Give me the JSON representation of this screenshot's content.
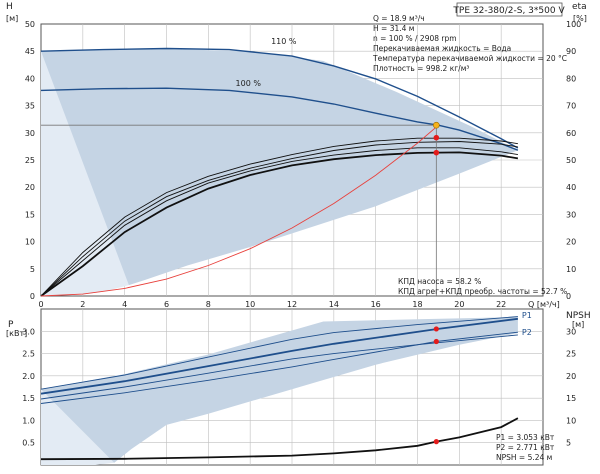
{
  "colors": {
    "band": "#c5d4e4",
    "band_light": "#e3ebf4",
    "curve": "#1f4f8c",
    "axis": "#555555",
    "grid": "#bfbfbf",
    "system": "#e8413c",
    "marker_op": "#f6b21b",
    "marker_pt": "#e31b1b",
    "text": "#222222"
  },
  "chart_data": [
    {
      "name": "head-curve",
      "type": "line",
      "title": "TPE 32-380/2-S, 3*500 V",
      "xlabel": "Q [м³/ч]",
      "ylabel": "H [м]",
      "y2label": "eta [%]",
      "xlim": [
        0,
        24
      ],
      "ylim": [
        0,
        50
      ],
      "y2lim": [
        0,
        100
      ],
      "xticks": [
        0,
        2,
        4,
        6,
        8,
        10,
        12,
        14,
        16,
        18,
        20,
        22
      ],
      "xtick_labels": [
        "0",
        "2",
        "4",
        "6",
        "8",
        "10",
        "12",
        "14",
        "16",
        "18",
        "20",
        "22"
      ],
      "yticks": [
        0,
        5,
        10,
        15,
        20,
        25,
        30,
        35,
        40,
        45,
        50
      ],
      "y2ticks": [
        0,
        10,
        20,
        30,
        40,
        50,
        60,
        70,
        80,
        90,
        100
      ],
      "envelope": {
        "upper": [
          [
            0,
            45
          ],
          [
            6,
            45.4
          ],
          [
            10,
            45
          ],
          [
            13.5,
            43.2
          ],
          [
            17,
            37.5
          ],
          [
            20.5,
            31.3
          ],
          [
            22.8,
            26.8
          ]
        ],
        "lower": [
          [
            22.8,
            26.8
          ],
          [
            20,
            22.5
          ],
          [
            16,
            16.5
          ],
          [
            10,
            9
          ],
          [
            7,
            5.6
          ],
          [
            5,
            3
          ],
          [
            4.2,
            2
          ]
        ],
        "lower_light": [
          [
            4.2,
            2
          ],
          [
            3,
            0.8
          ],
          [
            2,
            0.3
          ],
          [
            1,
            0.1
          ],
          [
            0,
            0
          ]
        ]
      },
      "series": [
        {
          "name": "110 %",
          "label": "110 %",
          "role": "head",
          "points": [
            [
              0,
              45
            ],
            [
              3,
              45.3
            ],
            [
              6,
              45.5
            ],
            [
              9,
              45.3
            ],
            [
              12,
              44.1
            ],
            [
              14,
              42.3
            ],
            [
              16,
              39.9
            ],
            [
              18,
              36.7
            ],
            [
              20,
              32.9
            ],
            [
              22,
              28.9
            ],
            [
              22.8,
              27.2
            ]
          ]
        },
        {
          "name": "100 %",
          "label": "100 %",
          "role": "head",
          "points": [
            [
              0,
              37.8
            ],
            [
              3,
              38.1
            ],
            [
              6,
              38.2
            ],
            [
              9,
              37.8
            ],
            [
              12,
              36.6
            ],
            [
              14,
              35.3
            ],
            [
              16,
              33.6
            ],
            [
              18,
              32.0
            ],
            [
              19,
              31.4
            ],
            [
              20,
              30.5
            ],
            [
              22,
              28.0
            ],
            [
              22.8,
              26.8
            ]
          ]
        },
        {
          "name": "eta-1",
          "role": "efficiency",
          "points": [
            [
              0,
              0
            ],
            [
              2,
              16
            ],
            [
              4,
              29
            ],
            [
              6,
              38
            ],
            [
              8,
              44
            ],
            [
              10,
              48.5
            ],
            [
              12,
              52
            ],
            [
              14,
              55
            ],
            [
              16,
              57
            ],
            [
              18,
              58
            ],
            [
              20,
              58
            ],
            [
              22,
              57
            ],
            [
              22.8,
              56
            ]
          ]
        },
        {
          "name": "eta-2",
          "role": "efficiency",
          "points": [
            [
              0,
              0
            ],
            [
              2,
              14.5
            ],
            [
              4,
              27.5
            ],
            [
              6,
              36.5
            ],
            [
              8,
              42.5
            ],
            [
              10,
              47
            ],
            [
              12,
              50.5
            ],
            [
              14,
              53.5
            ],
            [
              16,
              55.5
            ],
            [
              18,
              56.5
            ],
            [
              20,
              56.8
            ],
            [
              22,
              55.8
            ],
            [
              22.8,
              54.8
            ]
          ]
        },
        {
          "name": "eta-3",
          "role": "efficiency",
          "points": [
            [
              0,
              0
            ],
            [
              2,
              13
            ],
            [
              4,
              26
            ],
            [
              6,
              35
            ],
            [
              8,
              41.5
            ],
            [
              10,
              46
            ],
            [
              12,
              49.5
            ],
            [
              14,
              51.8
            ],
            [
              16,
              53.5
            ],
            [
              18,
              54.5
            ],
            [
              20,
              54.5
            ],
            [
              22,
              53
            ],
            [
              22.8,
              52
            ]
          ]
        },
        {
          "name": "eta-4",
          "role": "efficiency-bold",
          "points": [
            [
              0,
              0
            ],
            [
              2,
              11
            ],
            [
              4,
              23.5
            ],
            [
              6,
              32.5
            ],
            [
              8,
              39.5
            ],
            [
              10,
              44.5
            ],
            [
              12,
              48
            ],
            [
              14,
              50.3
            ],
            [
              16,
              51.8
            ],
            [
              18,
              52.6
            ],
            [
              20,
              52.8
            ],
            [
              22,
              51.6
            ],
            [
              22.8,
              50.6
            ]
          ]
        },
        {
          "name": "system",
          "role": "system",
          "points": [
            [
              0,
              0
            ],
            [
              2,
              0.35
            ],
            [
              4,
              1.4
            ],
            [
              6,
              3.1
            ],
            [
              8,
              5.6
            ],
            [
              10,
              8.7
            ],
            [
              12,
              12.5
            ],
            [
              14,
              17.0
            ],
            [
              16,
              22.2
            ],
            [
              18,
              28.1
            ],
            [
              19,
              31.4
            ]
          ]
        }
      ],
      "operating_point": {
        "q": 18.9,
        "h": 31.4,
        "eta_pump": 58.2,
        "eta_total": 52.7
      },
      "info_lines": [
        "Q = 18.9 м³/ч",
        "H = 31.4 м",
        "n = 100 % / 2908 rpm",
        "Перекачиваемая жидкость = Вода",
        "Температура перекачиваемой жидкости = 20 °C",
        "Плотность = 998.2 кг/м³"
      ],
      "eta_lines": [
        "КПД насоса = 58.2 %",
        "КПД агрег+КПД преобр. частоты = 52.7 %"
      ]
    },
    {
      "name": "power-npsh",
      "type": "line",
      "xlabel": "Q [м³/ч]",
      "ylabel": "P [кВт]",
      "y2label": "NPSH [м]",
      "xlim": [
        0,
        24
      ],
      "ylim": [
        0,
        3.5
      ],
      "y2lim": [
        0,
        35
      ],
      "yticks": [
        0.5,
        1.0,
        1.5,
        2.0,
        2.5,
        3.0
      ],
      "ytick_labels": [
        "0.5",
        "1.0",
        "1.5",
        "2.0",
        "2.5",
        "3.0"
      ],
      "y2ticks": [
        5,
        10,
        15,
        20,
        25,
        30
      ],
      "envelope": {
        "upper": [
          [
            0,
            1.7
          ],
          [
            4,
            2.04
          ],
          [
            8,
            2.48
          ],
          [
            13.5,
            3.22
          ],
          [
            18,
            3.27
          ],
          [
            22.8,
            3.32
          ]
        ],
        "lower": [
          [
            22.8,
            2.96
          ],
          [
            20,
            2.7
          ],
          [
            16,
            2.25
          ],
          [
            12,
            1.7
          ],
          [
            8,
            1.15
          ],
          [
            6,
            0.9
          ],
          [
            4.3,
            0.35
          ],
          [
            3.5,
            0.05
          ]
        ],
        "lower_light": [
          [
            3.5,
            0.05
          ],
          [
            2.6,
            0
          ],
          [
            0,
            0
          ],
          [
            0,
            1.7
          ]
        ]
      },
      "series": [
        {
          "name": "P1 outer",
          "role": "power",
          "points": [
            [
              0,
              1.7
            ],
            [
              4,
              2.02
            ],
            [
              8,
              2.42
            ],
            [
              12,
              2.82
            ],
            [
              14,
              2.97
            ],
            [
              18,
              3.15
            ],
            [
              22.8,
              3.33
            ]
          ]
        },
        {
          "name": "P1",
          "label": "P1",
          "role": "power-bold",
          "points": [
            [
              0,
              1.6
            ],
            [
              4,
              1.88
            ],
            [
              8,
              2.22
            ],
            [
              12,
              2.56
            ],
            [
              14,
              2.72
            ],
            [
              18.9,
              3.05
            ],
            [
              22.8,
              3.28
            ]
          ]
        },
        {
          "name": "P1 inner",
          "role": "power",
          "points": [
            [
              0,
              1.48
            ],
            [
              4,
              1.75
            ],
            [
              8,
              2.06
            ],
            [
              12,
              2.38
            ],
            [
              14,
              2.5
            ],
            [
              18,
              2.7
            ],
            [
              22.8,
              2.92
            ]
          ]
        },
        {
          "name": "P2",
          "label": "P2",
          "role": "power",
          "points": [
            [
              0,
              1.38
            ],
            [
              4,
              1.62
            ],
            [
              8,
              1.9
            ],
            [
              12,
              2.2
            ],
            [
              14,
              2.37
            ],
            [
              18.9,
              2.77
            ],
            [
              22.8,
              2.98
            ]
          ]
        },
        {
          "name": "NPSH",
          "role": "npsh",
          "points": [
            [
              0,
              1.3
            ],
            [
              4,
              1.4
            ],
            [
              8,
              1.7
            ],
            [
              12,
              2.1
            ],
            [
              14,
              2.6
            ],
            [
              16,
              3.3
            ],
            [
              18,
              4.3
            ],
            [
              18.9,
              5.24
            ],
            [
              20,
              6.2
            ],
            [
              22,
              8.5
            ],
            [
              22.8,
              10.5
            ]
          ]
        }
      ],
      "markers": [
        {
          "name": "P1 point",
          "q": 18.9,
          "value": 3.053
        },
        {
          "name": "P2 point",
          "q": 18.9,
          "value": 2.771
        },
        {
          "name": "NPSH point",
          "q": 18.9,
          "value_npsh": 5.24
        }
      ],
      "result_lines": [
        "P1 = 3.053 кВт",
        "P2 = 2.771 кВт",
        "NPSH = 5.24 м"
      ]
    }
  ]
}
